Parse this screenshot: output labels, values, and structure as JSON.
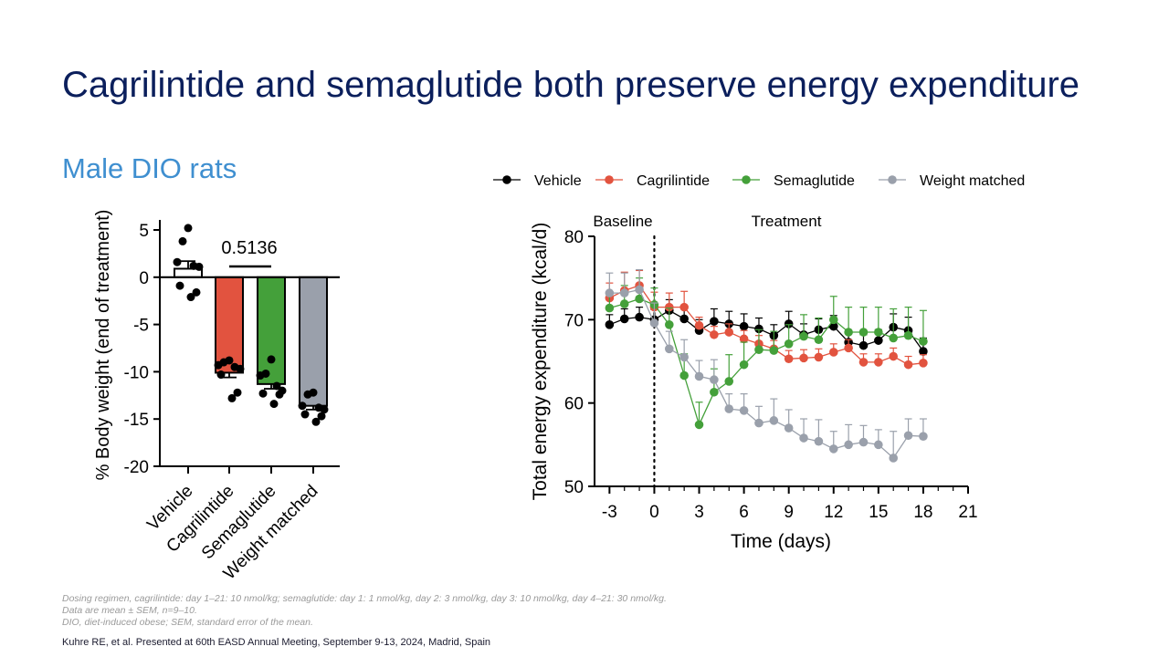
{
  "slide": {
    "title": "Cagrilintide and semaglutide both preserve energy expenditure",
    "subtitle": "Male DIO rats",
    "footnotes": [
      "Dosing regimen, cagrilintide: day 1–21: 10 nmol/kg; semaglutide: day 1: 1 nmol/kg, day 2: 3 nmol/kg, day 3: 10 nmol/kg, day 4–21: 30 nmol/kg.",
      "Data are mean ± SEM, n=9–10.",
      "DIO, diet-induced obese; SEM, standard error of the mean."
    ],
    "citation": "Kuhre RE, et al. Presented at 60th EASD Annual Meeting, September 9-13, 2024, Madrid, Spain"
  },
  "colors": {
    "vehicle": "#000000",
    "cagrilintide": "#e2533f",
    "semaglutide": "#44a03a",
    "weight_matched": "#9aa0ab"
  },
  "chart_data": [
    {
      "type": "bar",
      "ylabel": "% Body weight (end of treatment)",
      "ylim": [
        -20,
        5
      ],
      "yticks": [
        5,
        0,
        -5,
        -10,
        -15,
        -20
      ],
      "categories": [
        "Vehicle",
        "Cagrilintide",
        "Semaglutide",
        "Weight matched"
      ],
      "values": [
        0.9,
        -10.1,
        -11.3,
        -13.6
      ],
      "sem": [
        0.8,
        0.5,
        0.5,
        0.4
      ],
      "points": [
        [
          5.2,
          3.8,
          1.6,
          1.2,
          1.1,
          -0.9,
          -1.6,
          -2.1
        ],
        [
          -8.8,
          -9.0,
          -9.3,
          -9.5,
          -9.7,
          -10.3,
          -12.2,
          -12.8
        ],
        [
          -8.7,
          -10.2,
          -10.4,
          -11.5,
          -12.0,
          -12.3,
          -12.4,
          -13.4
        ],
        [
          -12.2,
          -12.4,
          -13.6,
          -13.8,
          -14.0,
          -14.5,
          -14.7,
          -15.3
        ]
      ],
      "annotation": {
        "text": "0.5136",
        "between": [
          "Cagrilintide",
          "Semaglutide"
        ]
      },
      "grid": false
    },
    {
      "type": "line",
      "xlabel": "Time  (days)",
      "ylabel": "Total energy expenditure (kcal/d)",
      "xlim": [
        -4,
        21
      ],
      "ylim": [
        50,
        80
      ],
      "xticks": [
        -3,
        0,
        3,
        6,
        9,
        12,
        15,
        18,
        21
      ],
      "yticks": [
        50,
        60,
        70,
        80
      ],
      "region_labels": {
        "left": "Baseline",
        "right": "Treatment"
      },
      "baseline_divider_x": 0,
      "legend": "top",
      "grid": false,
      "x": [
        -3,
        -2,
        -1,
        0,
        1,
        2,
        3,
        4,
        5,
        6,
        7,
        8,
        9,
        10,
        11,
        12,
        13,
        14,
        15,
        16,
        17,
        18
      ],
      "series": [
        {
          "name": "Vehicle",
          "values": [
            69.4,
            70.1,
            70.3,
            70.0,
            71.1,
            70.1,
            68.7,
            69.8,
            69.5,
            69.2,
            68.9,
            68.1,
            69.5,
            68.2,
            68.8,
            69.2,
            67.3,
            66.9,
            67.5,
            69.1,
            68.7,
            66.2
          ],
          "sem": [
            1.2,
            1.2,
            1.2,
            1.2,
            1.3,
            1.3,
            1.3,
            1.5,
            1.5,
            1.5,
            1.3,
            1.3,
            1.5,
            1.3,
            1.3,
            1.3,
            1.3,
            1.3,
            1.3,
            1.6,
            1.6,
            1.6
          ]
        },
        {
          "name": "Cagrilintide",
          "values": [
            72.6,
            73.5,
            74.1,
            71.5,
            71.5,
            71.5,
            69.3,
            68.2,
            68.5,
            67.7,
            67.1,
            66.5,
            65.3,
            65.4,
            65.5,
            66.1,
            66.6,
            64.9,
            64.9,
            65.6,
            64.6,
            64.8
          ],
          "sem": [
            1.8,
            2.2,
            1.8,
            1.8,
            1.7,
            1.9,
            1.0,
            1.0,
            1.0,
            1.0,
            1.0,
            1.0,
            1.0,
            1.0,
            1.0,
            1.0,
            1.0,
            1.0,
            1.0,
            1.0,
            1.0,
            1.0
          ]
        },
        {
          "name": "Semaglutide",
          "values": [
            71.4,
            71.9,
            72.5,
            71.8,
            69.4,
            63.3,
            57.4,
            61.3,
            62.6,
            64.6,
            66.4,
            66.3,
            67.1,
            68.0,
            67.6,
            70.0,
            68.5,
            68.5,
            68.5,
            67.8,
            68.1,
            67.4
          ],
          "sem": [
            1.6,
            2.2,
            2.5,
            2.0,
            2.0,
            2.6,
            2.7,
            2.8,
            3.2,
            2.7,
            2.4,
            2.3,
            2.3,
            2.6,
            2.6,
            2.8,
            3.0,
            3.0,
            3.0,
            3.5,
            3.4,
            3.7
          ]
        },
        {
          "name": "Weight matched",
          "values": [
            73.2,
            73.2,
            73.6,
            69.6,
            66.5,
            65.5,
            63.2,
            62.8,
            59.3,
            59.1,
            57.6,
            57.9,
            57.0,
            55.8,
            55.4,
            54.5,
            55.0,
            55.3,
            55.0,
            53.4,
            56.1,
            56.0
          ],
          "sem": [
            2.4,
            2.4,
            2.4,
            2.4,
            2.1,
            2.1,
            1.9,
            2.4,
            1.8,
            2.0,
            2.0,
            2.6,
            2.2,
            2.3,
            2.6,
            2.1,
            2.4,
            2.0,
            1.8,
            3.2,
            2.0,
            2.1
          ]
        }
      ]
    }
  ]
}
